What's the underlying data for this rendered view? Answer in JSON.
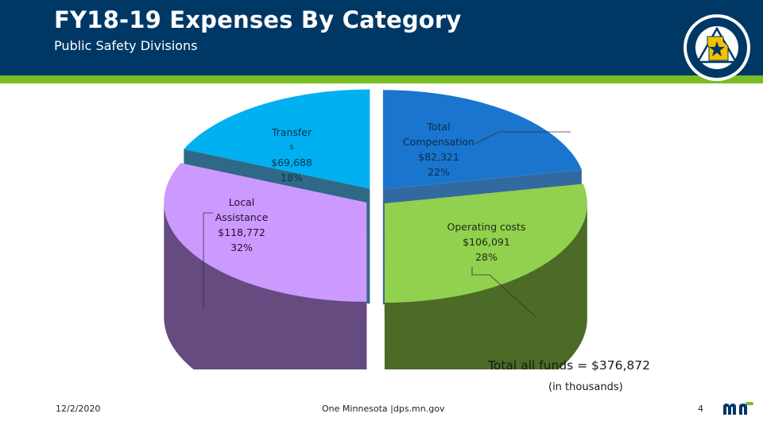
{
  "header": {
    "title": "FY18-19 Expenses By Category",
    "subtitle": "Public Safety Divisions",
    "seal_icon": "department-of-public-safety-seal"
  },
  "chart_data": {
    "type": "pie",
    "title": "FY18-19 Expenses By Category",
    "subtitle": "Public Safety Divisions",
    "slices": [
      {
        "label": "Total Compensation",
        "value": 82321,
        "value_text": "$82,321",
        "percent": 22,
        "percent_text": "22%",
        "color": "#1a75cf",
        "side_color": "#0f4f91"
      },
      {
        "label": "Operating costs",
        "value": 106091,
        "value_text": "$106,091",
        "percent": 28,
        "percent_text": "28%",
        "color": "#92d050",
        "side_color": "#4b6b27"
      },
      {
        "label": "Local Assistance",
        "value": 118772,
        "value_text": "$118,772",
        "percent": 32,
        "percent_text": "32%",
        "color": "#cc99ff",
        "side_color": "#654b80"
      },
      {
        "label": "Transfers",
        "label_line1": "Transfer",
        "label_line2": "s",
        "value": 69688,
        "value_text": "$69,688",
        "percent": 18,
        "percent_text": "18%",
        "color": "#00b0f0",
        "side_color": "#0a4f73"
      }
    ],
    "total_note": "Total all funds = $376,872",
    "units_note": "(in thousands)"
  },
  "footer": {
    "date": "12/2/2020",
    "center": "One Minnesota |dps.mn.gov",
    "page": "4",
    "logo_icon": "mn-logo"
  },
  "colors": {
    "header_bg": "#003865",
    "header_stripe": "#78be20"
  }
}
